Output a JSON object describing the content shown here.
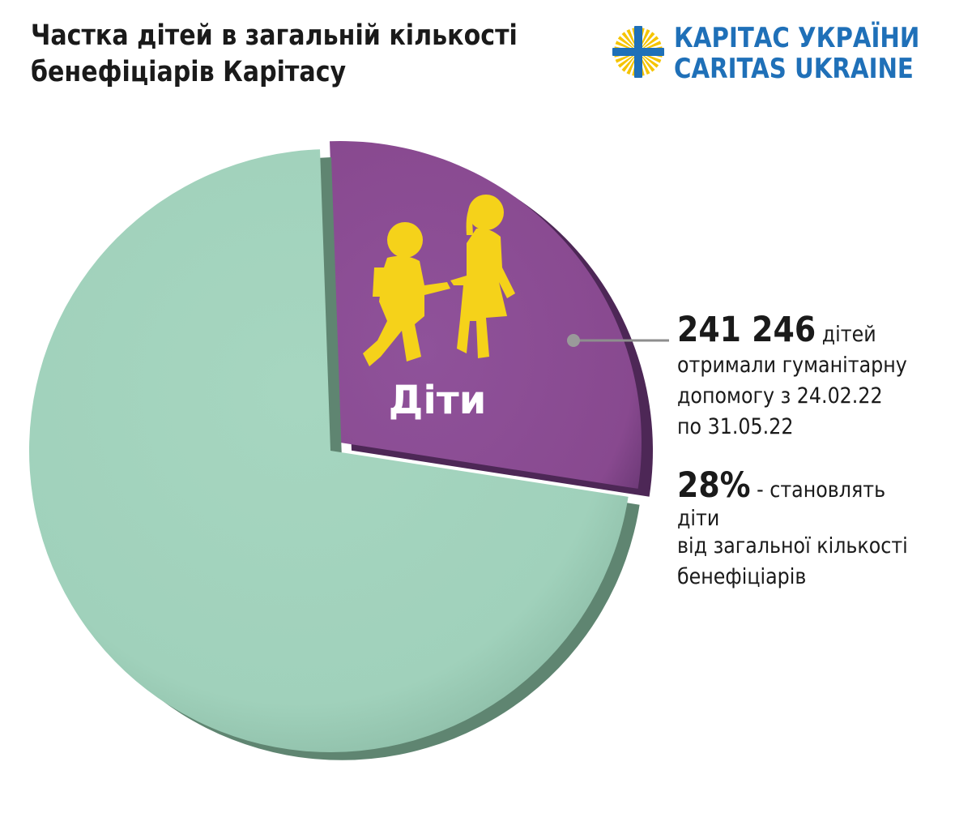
{
  "title": {
    "line1": "Частка дітей в загальній кількості",
    "line2": "бенефіціарів Карітасу"
  },
  "logo": {
    "line1": "КАРІТАС УКРАЇНИ",
    "line2": "CARITAS UKRAINE",
    "color": "#1f70b8",
    "accent": "#f5c400",
    "icon": "caritas-cross-icon"
  },
  "chart_data": {
    "type": "pie",
    "slices": [
      {
        "label": "Діти",
        "percent": 28,
        "color": "#8c4f97",
        "exploded": true
      },
      {
        "label": "",
        "percent": 72,
        "color": "#a2d3bd",
        "exploded": false
      }
    ],
    "icon": "children-walking-icon"
  },
  "annotation": {
    "count": "241 246",
    "count_suffix": " дітей",
    "lines": [
      "отримали гуманітарну",
      "допомогу з 24.02.22",
      "по 31.05.22"
    ],
    "percent": "28%",
    "percent_suffix": " - становлять діти",
    "percent_lines": [
      "від загальної кількості",
      "бенефіціарів"
    ]
  }
}
